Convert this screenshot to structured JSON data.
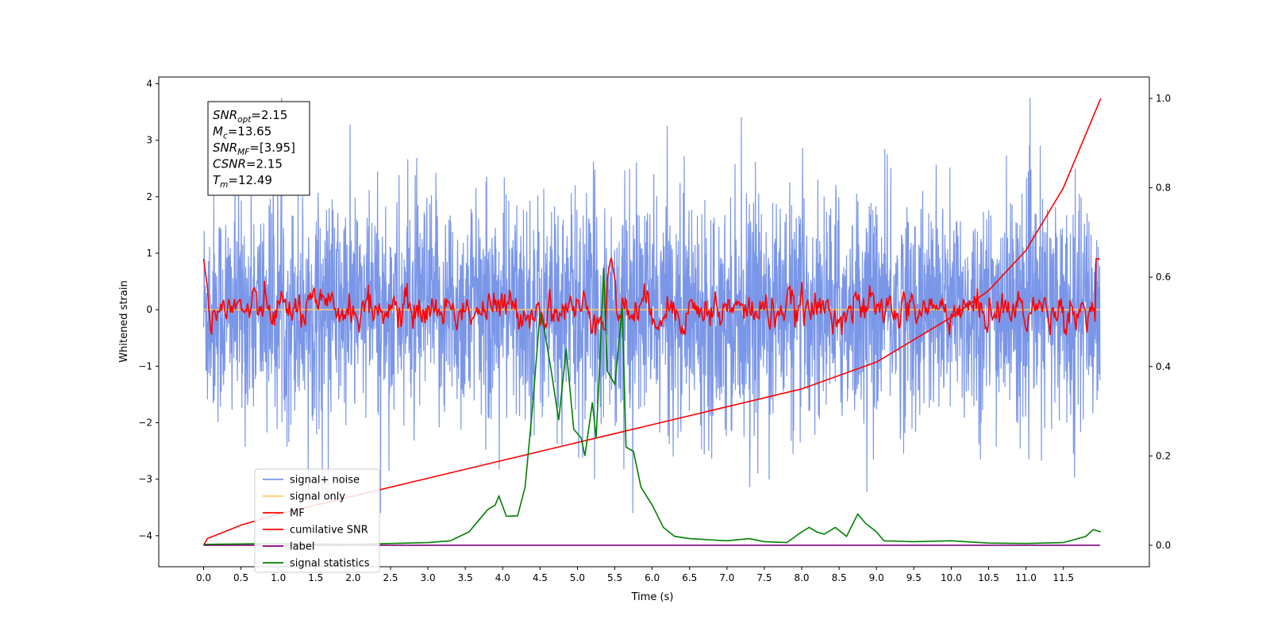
{
  "chart_data": {
    "type": "line",
    "xlabel": "Time (s)",
    "ylabel": "Whitened strain",
    "xlim": [
      -0.6,
      12.65
    ],
    "ylim": [
      -4.55,
      4.12
    ],
    "y2lim": [
      -0.048,
      1.048
    ],
    "x_ticks": [
      "0.0",
      "0.5",
      "1.0",
      "1.5",
      "2.0",
      "2.5",
      "3.0",
      "3.5",
      "4.0",
      "4.5",
      "5.0",
      "5.5",
      "6.0",
      "6.5",
      "7.0",
      "7.5",
      "8.0",
      "8.5",
      "9.0",
      "9.5",
      "10.0",
      "10.5",
      "11.0",
      "11.5"
    ],
    "y_ticks": [
      "4",
      "3",
      "2",
      "1",
      "0",
      "−1",
      "−2",
      "−3",
      "−4"
    ],
    "y2_ticks": [
      "1.0",
      "0.8",
      "0.6",
      "0.4",
      "0.2",
      "0.0"
    ],
    "legend_position": "lower-left",
    "annotation": [
      {
        "sym": "SNR",
        "sub": "opt",
        "val": "=2.15"
      },
      {
        "sym": "M",
        "sub": "c",
        "val": "=13.65"
      },
      {
        "sym": "SNR",
        "sub": "MF",
        "val": "=[3.95]"
      },
      {
        "sym": "CSNR",
        "sub": "",
        "val": "=2.15"
      },
      {
        "sym": "T",
        "sub": "m",
        "val": "=12.49"
      }
    ],
    "series": [
      {
        "name": "signal+ noise",
        "color": "#7a96e8",
        "axis": "left",
        "approx_range": [
          -3.6,
          3.75
        ]
      },
      {
        "name": "signal only",
        "color": "#ffc966",
        "axis": "left",
        "constant": 0.0
      },
      {
        "name": "MF",
        "color": "#ff0000",
        "axis": "left",
        "approx_range": [
          -0.45,
          1.0
        ]
      },
      {
        "name": "cumilative SNR",
        "color": "#ff0000",
        "axis": "right",
        "x": [
          0.0,
          0.05,
          0.5,
          1.0,
          2.0,
          3.0,
          4.0,
          5.0,
          6.0,
          7.0,
          8.0,
          9.0,
          10.0,
          10.5,
          11.0,
          11.5,
          11.8,
          12.0
        ],
        "values": [
          0.0,
          0.015,
          0.045,
          0.07,
          0.11,
          0.15,
          0.19,
          0.23,
          0.27,
          0.31,
          0.35,
          0.41,
          0.51,
          0.57,
          0.66,
          0.8,
          0.92,
          1.0
        ]
      },
      {
        "name": "label",
        "color": "#800080",
        "axis": "right",
        "constant": 0.0
      },
      {
        "name": "signal statistics",
        "color": "#008000",
        "axis": "right",
        "x": [
          0.0,
          0.5,
          1.0,
          1.5,
          2.0,
          2.5,
          3.0,
          3.3,
          3.55,
          3.7,
          3.8,
          3.9,
          3.95,
          4.05,
          4.2,
          4.3,
          4.4,
          4.5,
          4.55,
          4.65,
          4.75,
          4.85,
          4.95,
          5.05,
          5.1,
          5.2,
          5.25,
          5.3,
          5.35,
          5.4,
          5.5,
          5.6,
          5.65,
          5.75,
          5.85,
          6.0,
          6.15,
          6.3,
          6.5,
          7.0,
          7.3,
          7.5,
          7.8,
          8.0,
          8.1,
          8.2,
          8.3,
          8.45,
          8.6,
          8.75,
          8.85,
          9.0,
          9.1,
          9.5,
          10.0,
          10.5,
          11.0,
          11.5,
          11.8,
          11.9,
          12.0
        ],
        "values": [
          0.002,
          0.003,
          0.004,
          0.003,
          0.002,
          0.004,
          0.006,
          0.01,
          0.03,
          0.06,
          0.08,
          0.09,
          0.11,
          0.065,
          0.066,
          0.13,
          0.31,
          0.52,
          0.49,
          0.39,
          0.28,
          0.44,
          0.26,
          0.24,
          0.2,
          0.32,
          0.24,
          0.41,
          0.62,
          0.39,
          0.36,
          0.53,
          0.22,
          0.21,
          0.13,
          0.09,
          0.04,
          0.02,
          0.015,
          0.01,
          0.015,
          0.008,
          0.006,
          0.03,
          0.04,
          0.03,
          0.025,
          0.04,
          0.02,
          0.07,
          0.05,
          0.03,
          0.01,
          0.008,
          0.01,
          0.005,
          0.004,
          0.006,
          0.02,
          0.035,
          0.03
        ]
      }
    ]
  }
}
